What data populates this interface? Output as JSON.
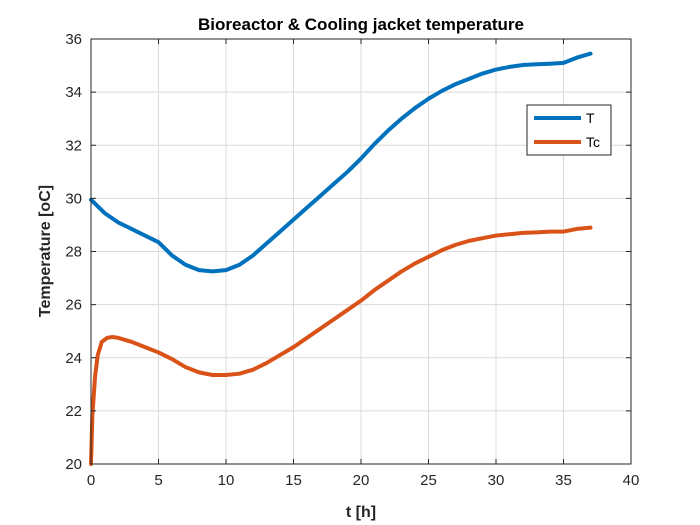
{
  "chart_data": {
    "type": "line",
    "title": "Bioreactor & Cooling jacket temperature",
    "xlabel": "t [h]",
    "ylabel": "Temperature [oC]",
    "xlim": [
      0,
      40
    ],
    "ylim": [
      20,
      36
    ],
    "xticks": [
      0,
      5,
      10,
      15,
      20,
      25,
      30,
      35,
      40
    ],
    "yticks": [
      20,
      22,
      24,
      26,
      28,
      30,
      32,
      34,
      36
    ],
    "grid": true,
    "legend": "top-right",
    "series": [
      {
        "name": "T",
        "color": "#0072BD",
        "x": [
          0,
          0.5,
          1,
          2,
          3,
          4,
          5,
          6,
          7,
          8,
          9,
          10,
          11,
          12,
          13,
          14,
          15,
          16,
          17,
          18,
          19,
          20,
          21,
          22,
          23,
          24,
          25,
          26,
          27,
          28,
          29,
          30,
          31,
          32,
          33,
          34,
          35,
          36,
          37
        ],
        "y": [
          29.95,
          29.7,
          29.45,
          29.1,
          28.85,
          28.6,
          28.35,
          27.85,
          27.5,
          27.3,
          27.25,
          27.3,
          27.5,
          27.85,
          28.3,
          28.75,
          29.2,
          29.65,
          30.1,
          30.55,
          31.0,
          31.5,
          32.05,
          32.55,
          33.0,
          33.4,
          33.75,
          34.05,
          34.3,
          34.5,
          34.7,
          34.85,
          34.95,
          35.02,
          35.05,
          35.07,
          35.1,
          35.3,
          35.45
        ]
      },
      {
        "name": "Tc",
        "color": "#D95319",
        "x": [
          0,
          0.1,
          0.3,
          0.5,
          0.8,
          1.2,
          1.6,
          2,
          3,
          4,
          5,
          6,
          7,
          8,
          9,
          10,
          11,
          12,
          13,
          14,
          15,
          16,
          17,
          18,
          19,
          20,
          21,
          22,
          23,
          24,
          25,
          26,
          27,
          28,
          29,
          30,
          31,
          32,
          33,
          34,
          35,
          36,
          37
        ],
        "y": [
          20.0,
          21.8,
          23.3,
          24.1,
          24.6,
          24.75,
          24.78,
          24.75,
          24.6,
          24.4,
          24.2,
          23.95,
          23.65,
          23.45,
          23.35,
          23.35,
          23.4,
          23.55,
          23.8,
          24.1,
          24.4,
          24.75,
          25.1,
          25.45,
          25.8,
          26.15,
          26.55,
          26.9,
          27.25,
          27.55,
          27.8,
          28.05,
          28.25,
          28.4,
          28.5,
          28.6,
          28.65,
          28.7,
          28.72,
          28.75,
          28.75,
          28.85,
          28.9
        ]
      }
    ]
  }
}
